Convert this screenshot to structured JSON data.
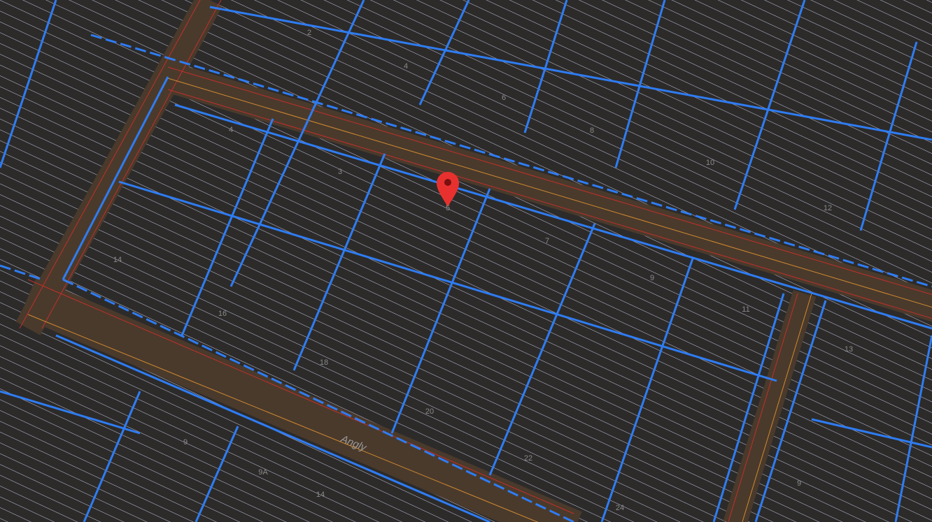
{
  "parcel_labels": [
    "2",
    "4",
    "6",
    "8",
    "10",
    "12",
    "4",
    "3",
    "5",
    "7",
    "9",
    "11",
    "13",
    "14",
    "16",
    "18",
    "20",
    "22",
    "24",
    "9",
    "9A",
    "14",
    "9"
  ],
  "street_label": "Angly"
}
